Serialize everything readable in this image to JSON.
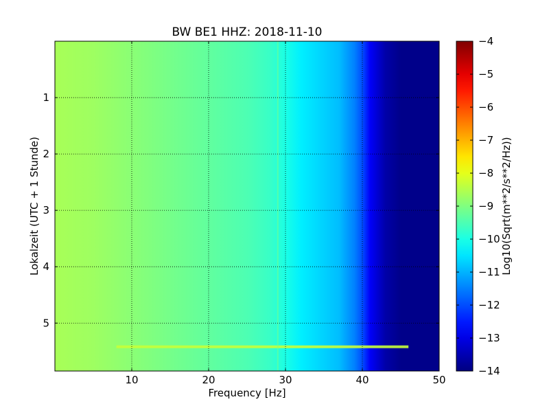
{
  "chart_data": {
    "type": "heatmap",
    "title": "BW BE1 HHZ: 2018-11-10",
    "xlabel": "Frequency [Hz]",
    "ylabel": "Lokalzeit (UTC + 1 Stunde)",
    "xlim": [
      0,
      50
    ],
    "ylim": [
      5.85,
      0
    ],
    "y_axis_inverted": true,
    "x_ticks": [
      10,
      20,
      30,
      40,
      50
    ],
    "y_ticks": [
      1,
      2,
      3,
      4,
      5
    ],
    "grid": true,
    "colormap": "jet",
    "colorbar": {
      "label": "Log10(Sqrt(m**2/s**2/Hz))",
      "range": [
        -14,
        -4
      ],
      "ticks": [
        -4,
        -5,
        -6,
        -7,
        -8,
        -9,
        -10,
        -11,
        -12,
        -13,
        -14
      ]
    },
    "level_vs_frequency": {
      "frequency_hz": [
        0,
        5,
        10,
        15,
        20,
        25,
        28,
        30,
        32,
        35,
        37,
        38,
        39,
        40,
        41,
        42,
        43,
        45,
        50
      ],
      "log10_amplitude": [
        -8.6,
        -8.7,
        -8.9,
        -9.1,
        -9.3,
        -9.5,
        -9.7,
        -10.0,
        -10.4,
        -10.7,
        -10.9,
        -11.2,
        -11.5,
        -12.0,
        -12.8,
        -13.2,
        -13.6,
        -13.9,
        -13.9
      ]
    },
    "features": [
      {
        "label": "horizontal band",
        "time_h": 5.42,
        "freq_range_hz": [
          8,
          46
        ],
        "log10_amplitude": -8.3
      },
      {
        "label": "vertical line",
        "freq_hz": 29,
        "log10_amplitude": -9.0
      }
    ]
  }
}
